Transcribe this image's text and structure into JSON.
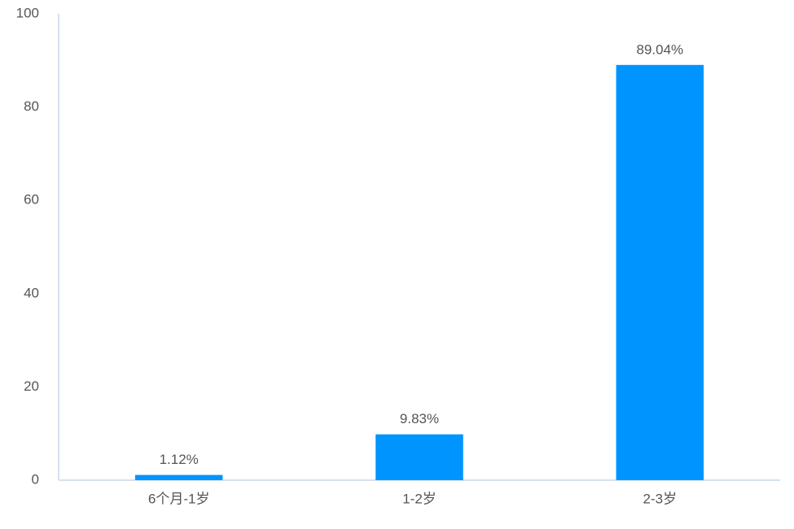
{
  "chart_data": {
    "type": "bar",
    "categories": [
      "6个月-1岁",
      "1-2岁",
      "2-3岁"
    ],
    "values": [
      1.12,
      9.83,
      89.04
    ],
    "value_labels": [
      "1.12%",
      "9.83%",
      "89.04%"
    ],
    "color": "#0094ff",
    "ylim": [
      0,
      100
    ],
    "yticks": [
      0,
      20,
      40,
      60,
      80,
      100
    ],
    "grid": false
  }
}
